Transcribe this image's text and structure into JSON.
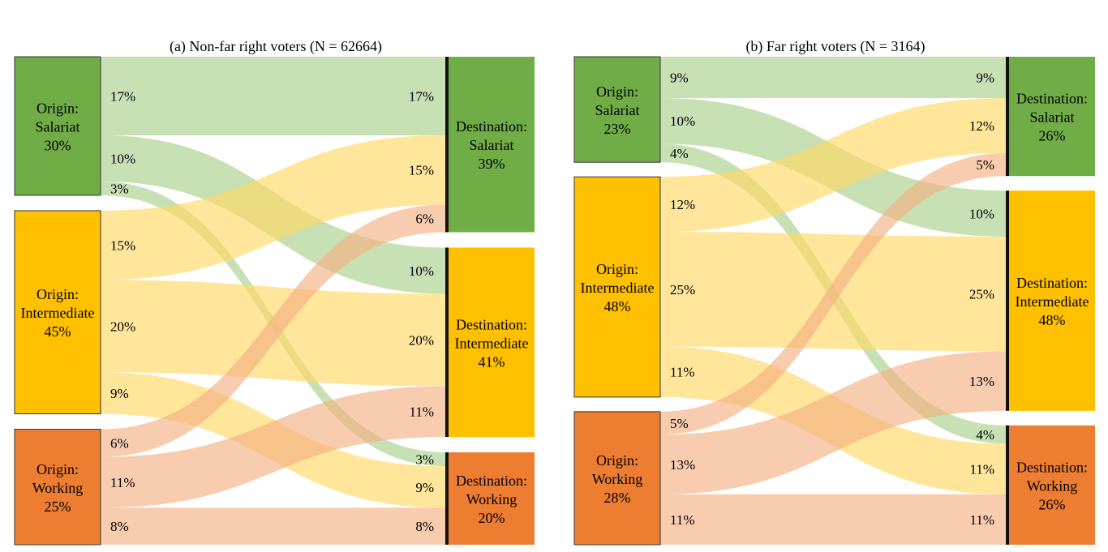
{
  "chart_data": [
    {
      "type": "sankey",
      "title": "(a) Non-far right voters (N = 62664)",
      "nodes_origin": [
        {
          "key": "S",
          "label": [
            "Origin:",
            "Salariat",
            "30%"
          ],
          "color": "#70ad47"
        },
        {
          "key": "I",
          "label": [
            "Origin:",
            "Intermediate",
            "45%"
          ],
          "color": "#ffc000"
        },
        {
          "key": "W",
          "label": [
            "Origin:",
            "Working",
            "25%"
          ],
          "color": "#ed7d31"
        }
      ],
      "nodes_destination": [
        {
          "key": "S",
          "label": [
            "Destination:",
            "Salariat",
            "39%"
          ],
          "color": "#70ad47"
        },
        {
          "key": "I",
          "label": [
            "Destination:",
            "Intermediate",
            "41%"
          ],
          "color": "#ffc000"
        },
        {
          "key": "W",
          "label": [
            "Destination:",
            "Working",
            "20%"
          ],
          "color": "#ed7d31"
        }
      ],
      "flows": [
        {
          "from": "S",
          "to": "S",
          "value": 17
        },
        {
          "from": "S",
          "to": "I",
          "value": 10
        },
        {
          "from": "S",
          "to": "W",
          "value": 3
        },
        {
          "from": "I",
          "to": "S",
          "value": 15
        },
        {
          "from": "I",
          "to": "I",
          "value": 20
        },
        {
          "from": "I",
          "to": "W",
          "value": 9
        },
        {
          "from": "W",
          "to": "S",
          "value": 6
        },
        {
          "from": "W",
          "to": "I",
          "value": 11
        },
        {
          "from": "W",
          "to": "W",
          "value": 8
        }
      ]
    },
    {
      "type": "sankey",
      "title": "(b) Far right voters (N = 3164)",
      "nodes_origin": [
        {
          "key": "S",
          "label": [
            "Origin:",
            "Salariat",
            "23%"
          ],
          "color": "#70ad47"
        },
        {
          "key": "I",
          "label": [
            "Origin:",
            "Intermediate",
            "48%"
          ],
          "color": "#ffc000"
        },
        {
          "key": "W",
          "label": [
            "Origin:",
            "Working",
            "28%"
          ],
          "color": "#ed7d31"
        }
      ],
      "nodes_destination": [
        {
          "key": "S",
          "label": [
            "Destination:",
            "Salariat",
            "26%"
          ],
          "color": "#70ad47"
        },
        {
          "key": "I",
          "label": [
            "Destination:",
            "Intermediate",
            "48%"
          ],
          "color": "#ffc000"
        },
        {
          "key": "W",
          "label": [
            "Destination:",
            "Working",
            "26%"
          ],
          "color": "#ed7d31"
        }
      ],
      "flows": [
        {
          "from": "S",
          "to": "S",
          "value": 9
        },
        {
          "from": "S",
          "to": "I",
          "value": 10
        },
        {
          "from": "S",
          "to": "W",
          "value": 4
        },
        {
          "from": "I",
          "to": "S",
          "value": 12
        },
        {
          "from": "I",
          "to": "I",
          "value": 25
        },
        {
          "from": "I",
          "to": "W",
          "value": 11
        },
        {
          "from": "W",
          "to": "S",
          "value": 5
        },
        {
          "from": "W",
          "to": "I",
          "value": 13
        },
        {
          "from": "W",
          "to": "W",
          "value": 11
        }
      ]
    }
  ],
  "flow_colors": {
    "S": "#a9d18e",
    "I": "#ffd966",
    "W": "#f4b183"
  }
}
